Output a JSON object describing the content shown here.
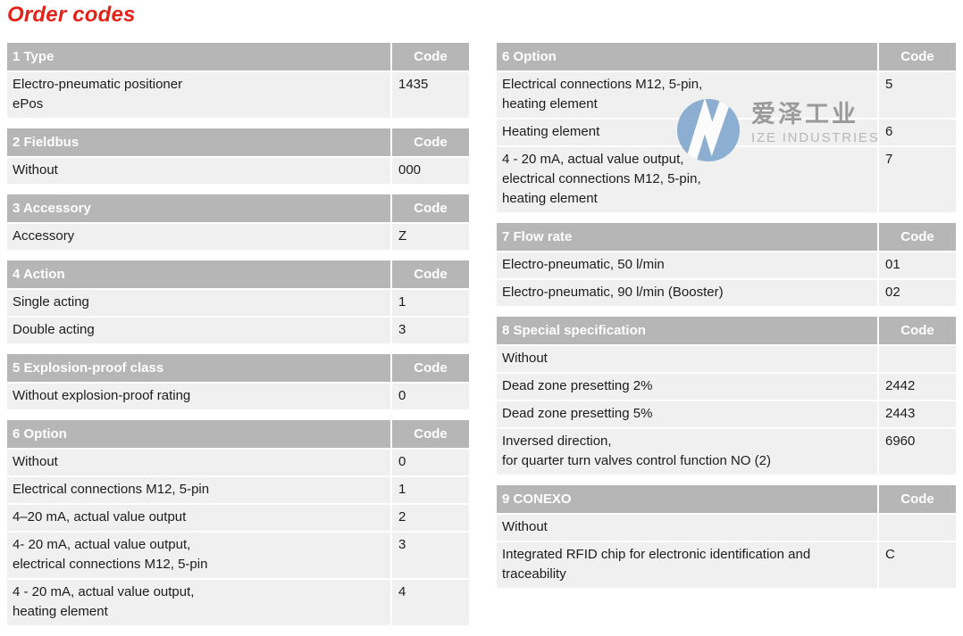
{
  "page_title": "Order codes",
  "colors": {
    "title_red": "#e2231a",
    "table_header_bg": "#b6b6b6",
    "table_header_text": "#ffffff",
    "row_bg": "#f0f0f0",
    "row_text": "#1c1c1c",
    "separator": "#ffffff",
    "logo_blue": "#7ba3cb"
  },
  "watermark": {
    "logo_icon": "ize-circular-arrows-logo",
    "chinese_name": "爱泽工业",
    "latin_name": "IZE INDUSTRIES"
  },
  "columns": {
    "left": {
      "tables": [
        {
          "title": "1 Type",
          "code_label": "Code",
          "rows": [
            {
              "desc": "Electro-pneumatic positioner\nePos",
              "code": "1435"
            }
          ]
        },
        {
          "title": "2 Fieldbus",
          "code_label": "Code",
          "rows": [
            {
              "desc": "Without",
              "code": "000"
            }
          ]
        },
        {
          "title": "3 Accessory",
          "code_label": "Code",
          "rows": [
            {
              "desc": "Accessory",
              "code": "Z"
            }
          ]
        },
        {
          "title": "4 Action",
          "code_label": "Code",
          "rows": [
            {
              "desc": "Single acting",
              "code": "1"
            },
            {
              "desc": "Double acting",
              "code": "3"
            }
          ]
        },
        {
          "title": "5 Explosion-proof class",
          "code_label": "Code",
          "rows": [
            {
              "desc": "Without explosion-proof rating",
              "code": "0"
            }
          ]
        },
        {
          "title": "6 Option",
          "code_label": "Code",
          "rows": [
            {
              "desc": "Without",
              "code": "0"
            },
            {
              "desc": "Electrical connections M12, 5-pin",
              "code": "1"
            },
            {
              "desc": "4–20 mA, actual value output",
              "code": "2"
            },
            {
              "desc": "4- 20 mA, actual value output,\nelectrical connections M12, 5-pin",
              "code": "3"
            },
            {
              "desc": "4 - 20 mA, actual value output,\nheating element",
              "code": "4"
            }
          ]
        }
      ]
    },
    "right": {
      "tables": [
        {
          "title": "6 Option",
          "code_label": "Code",
          "rows": [
            {
              "desc": "Electrical connections M12, 5-pin,\nheating element",
              "code": "5"
            },
            {
              "desc": "Heating element",
              "code": "6"
            },
            {
              "desc": "4 - 20 mA, actual value output,\nelectrical connections M12, 5-pin,\nheating element",
              "code": "7"
            }
          ]
        },
        {
          "title": "7 Flow rate",
          "code_label": "Code",
          "rows": [
            {
              "desc": "Electro-pneumatic, 50 l/min",
              "code": "01"
            },
            {
              "desc": "Electro-pneumatic, 90 l/min (Booster)",
              "code": "02"
            }
          ]
        },
        {
          "title": "8 Special specification",
          "code_label": "Code",
          "rows": [
            {
              "desc": "Without",
              "code": ""
            },
            {
              "desc": "Dead zone presetting 2%",
              "code": "2442"
            },
            {
              "desc": "Dead zone presetting 5%",
              "code": "2443"
            },
            {
              "desc": "Inversed direction,\nfor quarter turn valves control function NO (2)",
              "code": "6960"
            }
          ]
        },
        {
          "title": "9 CONEXO",
          "code_label": "Code",
          "rows": [
            {
              "desc": "Without",
              "code": ""
            },
            {
              "desc": "Integrated RFID chip for electronic identification and\ntraceability",
              "code": "C"
            }
          ]
        }
      ]
    }
  }
}
